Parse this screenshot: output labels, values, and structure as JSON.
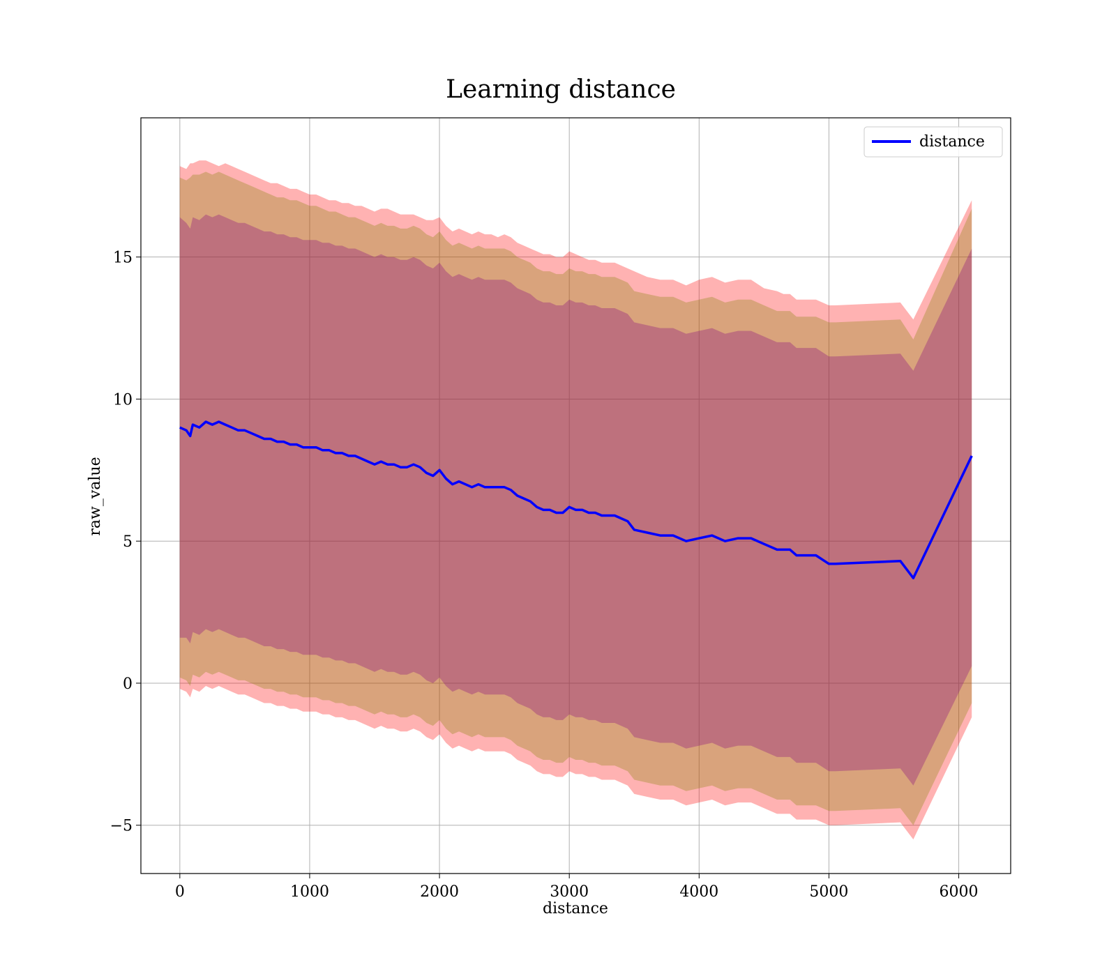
{
  "chart_data": {
    "type": "line",
    "title": "Learning distance",
    "xlabel": "distance",
    "ylabel": "raw_value",
    "xlim": [
      -300,
      6400
    ],
    "ylim": [
      -6.7,
      19.9
    ],
    "xticks": [
      0,
      1000,
      2000,
      3000,
      4000,
      5000,
      6000
    ],
    "xtick_labels": [
      "0",
      "1000",
      "2000",
      "3000",
      "4000",
      "5000",
      "6000"
    ],
    "yticks": [
      -5,
      0,
      5,
      10,
      15
    ],
    "ytick_labels": [
      "−5",
      "0",
      "5",
      "10",
      "15"
    ],
    "grid": true,
    "legend": {
      "position": "top-right",
      "entries": [
        "distance"
      ]
    },
    "colors": {
      "line": "#0000ff",
      "band_outer": "#ff0000",
      "band_mid": "#808000",
      "band_inner": "#800080",
      "grid": "#b0b0b0"
    },
    "series": [
      {
        "name": "distance",
        "x": [
          0,
          50,
          80,
          100,
          150,
          200,
          250,
          300,
          350,
          400,
          450,
          500,
          550,
          600,
          650,
          700,
          750,
          800,
          850,
          900,
          950,
          1000,
          1050,
          1100,
          1150,
          1200,
          1250,
          1300,
          1350,
          1400,
          1450,
          1500,
          1550,
          1600,
          1650,
          1700,
          1750,
          1800,
          1850,
          1900,
          1950,
          2000,
          2050,
          2100,
          2150,
          2200,
          2250,
          2300,
          2350,
          2400,
          2450,
          2500,
          2550,
          2600,
          2650,
          2700,
          2750,
          2800,
          2850,
          2900,
          2950,
          3000,
          3050,
          3100,
          3150,
          3200,
          3250,
          3300,
          3350,
          3400,
          3450,
          3500,
          3600,
          3700,
          3800,
          3900,
          4000,
          4100,
          4200,
          4300,
          4400,
          4500,
          4600,
          4650,
          4700,
          4750,
          4800,
          4850,
          4900,
          5000,
          5050,
          5550,
          5650,
          6100
        ],
        "values": [
          9.0,
          8.9,
          8.7,
          9.1,
          9.0,
          9.2,
          9.1,
          9.2,
          9.1,
          9.0,
          8.9,
          8.9,
          8.8,
          8.7,
          8.6,
          8.6,
          8.5,
          8.5,
          8.4,
          8.4,
          8.3,
          8.3,
          8.3,
          8.2,
          8.2,
          8.1,
          8.1,
          8.0,
          8.0,
          7.9,
          7.8,
          7.7,
          7.8,
          7.7,
          7.7,
          7.6,
          7.6,
          7.7,
          7.6,
          7.4,
          7.3,
          7.5,
          7.2,
          7.0,
          7.1,
          7.0,
          6.9,
          7.0,
          6.9,
          6.9,
          6.9,
          6.9,
          6.8,
          6.6,
          6.5,
          6.4,
          6.2,
          6.1,
          6.1,
          6.0,
          6.0,
          6.2,
          6.1,
          6.1,
          6.0,
          6.0,
          5.9,
          5.9,
          5.9,
          5.8,
          5.7,
          5.4,
          5.3,
          5.2,
          5.2,
          5.0,
          5.1,
          5.2,
          5.0,
          5.1,
          5.1,
          4.9,
          4.7,
          4.7,
          4.7,
          4.5,
          4.5,
          4.5,
          4.5,
          4.2,
          4.2,
          4.3,
          3.7,
          8.0
        ],
        "outer_upper": [
          18.2,
          18.1,
          18.3,
          18.3,
          18.4,
          18.4,
          18.3,
          18.2,
          18.3,
          18.2,
          18.1,
          18.0,
          17.9,
          17.8,
          17.7,
          17.6,
          17.6,
          17.5,
          17.4,
          17.4,
          17.3,
          17.2,
          17.2,
          17.1,
          17.0,
          17.0,
          16.9,
          16.9,
          16.8,
          16.8,
          16.7,
          16.6,
          16.7,
          16.7,
          16.6,
          16.5,
          16.5,
          16.5,
          16.4,
          16.3,
          16.3,
          16.4,
          16.1,
          15.9,
          16.0,
          15.9,
          15.8,
          15.9,
          15.8,
          15.8,
          15.7,
          15.8,
          15.7,
          15.5,
          15.4,
          15.3,
          15.2,
          15.1,
          15.1,
          15.0,
          15.0,
          15.2,
          15.1,
          15.0,
          14.9,
          14.9,
          14.8,
          14.8,
          14.8,
          14.7,
          14.6,
          14.5,
          14.3,
          14.2,
          14.2,
          14.0,
          14.2,
          14.3,
          14.1,
          14.2,
          14.2,
          13.9,
          13.8,
          13.7,
          13.7,
          13.5,
          13.5,
          13.5,
          13.5,
          13.3,
          13.3,
          13.4,
          12.8,
          17.0
        ],
        "outer_lower": [
          -0.2,
          -0.3,
          -0.5,
          -0.2,
          -0.3,
          -0.1,
          -0.2,
          -0.1,
          -0.2,
          -0.3,
          -0.4,
          -0.4,
          -0.5,
          -0.6,
          -0.7,
          -0.7,
          -0.8,
          -0.8,
          -0.9,
          -0.9,
          -1.0,
          -1.0,
          -1.0,
          -1.1,
          -1.1,
          -1.2,
          -1.2,
          -1.3,
          -1.3,
          -1.4,
          -1.5,
          -1.6,
          -1.5,
          -1.6,
          -1.6,
          -1.7,
          -1.7,
          -1.6,
          -1.7,
          -1.9,
          -2.0,
          -1.8,
          -2.1,
          -2.3,
          -2.2,
          -2.3,
          -2.4,
          -2.3,
          -2.4,
          -2.4,
          -2.4,
          -2.4,
          -2.5,
          -2.7,
          -2.8,
          -2.9,
          -3.1,
          -3.2,
          -3.2,
          -3.3,
          -3.3,
          -3.1,
          -3.2,
          -3.2,
          -3.3,
          -3.3,
          -3.4,
          -3.4,
          -3.4,
          -3.5,
          -3.6,
          -3.9,
          -4.0,
          -4.1,
          -4.1,
          -4.3,
          -4.2,
          -4.1,
          -4.3,
          -4.2,
          -4.2,
          -4.4,
          -4.6,
          -4.6,
          -4.6,
          -4.8,
          -4.8,
          -4.8,
          -4.8,
          -5.0,
          -5.0,
          -4.9,
          -5.5,
          -1.2
        ],
        "mid_upper": [
          17.8,
          17.7,
          17.8,
          17.9,
          17.9,
          18.0,
          17.9,
          18.0,
          17.9,
          17.8,
          17.7,
          17.6,
          17.5,
          17.4,
          17.3,
          17.2,
          17.1,
          17.1,
          17.0,
          17.0,
          16.9,
          16.8,
          16.8,
          16.7,
          16.6,
          16.6,
          16.5,
          16.4,
          16.4,
          16.3,
          16.2,
          16.1,
          16.2,
          16.1,
          16.1,
          16.0,
          16.0,
          16.1,
          16.0,
          15.8,
          15.7,
          15.9,
          15.6,
          15.4,
          15.5,
          15.4,
          15.3,
          15.4,
          15.3,
          15.3,
          15.3,
          15.3,
          15.2,
          15.0,
          14.9,
          14.8,
          14.6,
          14.5,
          14.5,
          14.4,
          14.4,
          14.6,
          14.5,
          14.5,
          14.4,
          14.4,
          14.3,
          14.3,
          14.3,
          14.2,
          14.1,
          13.8,
          13.7,
          13.6,
          13.6,
          13.4,
          13.5,
          13.6,
          13.4,
          13.5,
          13.5,
          13.3,
          13.1,
          13.1,
          13.1,
          12.9,
          12.9,
          12.9,
          12.9,
          12.7,
          12.7,
          12.8,
          12.1,
          16.7
        ],
        "mid_lower": [
          0.2,
          0.1,
          -0.1,
          0.3,
          0.2,
          0.4,
          0.3,
          0.4,
          0.3,
          0.2,
          0.1,
          0.1,
          0.0,
          -0.1,
          -0.2,
          -0.2,
          -0.3,
          -0.3,
          -0.4,
          -0.4,
          -0.5,
          -0.5,
          -0.5,
          -0.6,
          -0.6,
          -0.7,
          -0.7,
          -0.8,
          -0.8,
          -0.9,
          -1.0,
          -1.1,
          -1.0,
          -1.1,
          -1.1,
          -1.2,
          -1.2,
          -1.1,
          -1.2,
          -1.4,
          -1.5,
          -1.3,
          -1.6,
          -1.8,
          -1.7,
          -1.8,
          -1.9,
          -1.8,
          -1.9,
          -1.9,
          -1.9,
          -1.9,
          -2.0,
          -2.2,
          -2.3,
          -2.4,
          -2.6,
          -2.7,
          -2.7,
          -2.8,
          -2.8,
          -2.6,
          -2.7,
          -2.7,
          -2.8,
          -2.8,
          -2.9,
          -2.9,
          -2.9,
          -3.0,
          -3.1,
          -3.4,
          -3.5,
          -3.6,
          -3.6,
          -3.8,
          -3.7,
          -3.6,
          -3.8,
          -3.7,
          -3.7,
          -3.9,
          -4.1,
          -4.1,
          -4.1,
          -4.3,
          -4.3,
          -4.3,
          -4.3,
          -4.5,
          -4.5,
          -4.4,
          -5.0,
          -0.7
        ],
        "inner_upper": [
          16.4,
          16.2,
          16.0,
          16.4,
          16.3,
          16.5,
          16.4,
          16.5,
          16.4,
          16.3,
          16.2,
          16.2,
          16.1,
          16.0,
          15.9,
          15.9,
          15.8,
          15.8,
          15.7,
          15.7,
          15.6,
          15.6,
          15.6,
          15.5,
          15.5,
          15.4,
          15.4,
          15.3,
          15.3,
          15.2,
          15.1,
          15.0,
          15.1,
          15.0,
          15.0,
          14.9,
          14.9,
          15.0,
          14.9,
          14.7,
          14.6,
          14.8,
          14.5,
          14.3,
          14.4,
          14.3,
          14.2,
          14.3,
          14.2,
          14.2,
          14.2,
          14.2,
          14.1,
          13.9,
          13.8,
          13.7,
          13.5,
          13.4,
          13.4,
          13.3,
          13.3,
          13.5,
          13.4,
          13.4,
          13.3,
          13.3,
          13.2,
          13.2,
          13.2,
          13.1,
          13.0,
          12.7,
          12.6,
          12.5,
          12.5,
          12.3,
          12.4,
          12.5,
          12.3,
          12.4,
          12.4,
          12.2,
          12.0,
          12.0,
          12.0,
          11.8,
          11.8,
          11.8,
          11.8,
          11.5,
          11.5,
          11.6,
          11.0,
          15.3
        ],
        "inner_lower": [
          1.6,
          1.6,
          1.4,
          1.8,
          1.7,
          1.9,
          1.8,
          1.9,
          1.8,
          1.7,
          1.6,
          1.6,
          1.5,
          1.4,
          1.3,
          1.3,
          1.2,
          1.2,
          1.1,
          1.1,
          1.0,
          1.0,
          1.0,
          0.9,
          0.9,
          0.8,
          0.8,
          0.7,
          0.7,
          0.6,
          0.5,
          0.4,
          0.5,
          0.4,
          0.4,
          0.3,
          0.3,
          0.4,
          0.3,
          0.1,
          0.0,
          0.2,
          -0.1,
          -0.3,
          -0.2,
          -0.3,
          -0.4,
          -0.3,
          -0.4,
          -0.4,
          -0.4,
          -0.4,
          -0.5,
          -0.7,
          -0.8,
          -0.9,
          -1.1,
          -1.2,
          -1.2,
          -1.3,
          -1.3,
          -1.1,
          -1.2,
          -1.2,
          -1.3,
          -1.3,
          -1.4,
          -1.4,
          -1.4,
          -1.5,
          -1.6,
          -1.9,
          -2.0,
          -2.1,
          -2.1,
          -2.3,
          -2.2,
          -2.1,
          -2.3,
          -2.2,
          -2.2,
          -2.4,
          -2.6,
          -2.6,
          -2.6,
          -2.8,
          -2.8,
          -2.8,
          -2.8,
          -3.1,
          -3.1,
          -3.0,
          -3.6,
          0.6
        ]
      }
    ]
  }
}
